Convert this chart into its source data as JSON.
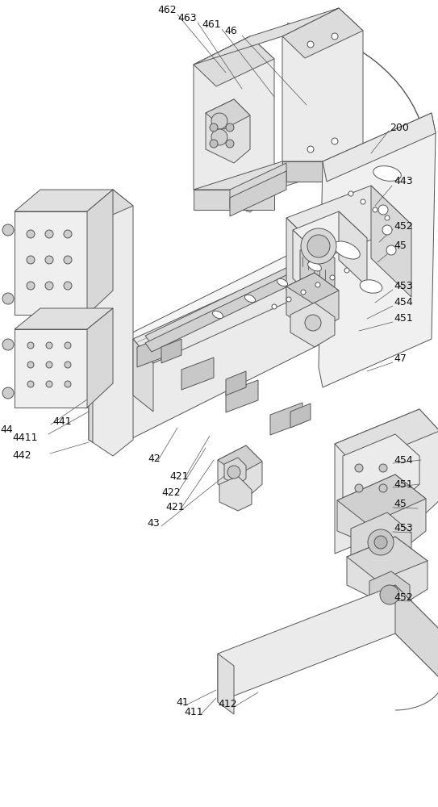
{
  "bg_color": "#ffffff",
  "lc": "#555555",
  "lw": 0.7,
  "figsize": [
    5.43,
    10.0
  ],
  "dpi": 100,
  "label_fs": 9
}
